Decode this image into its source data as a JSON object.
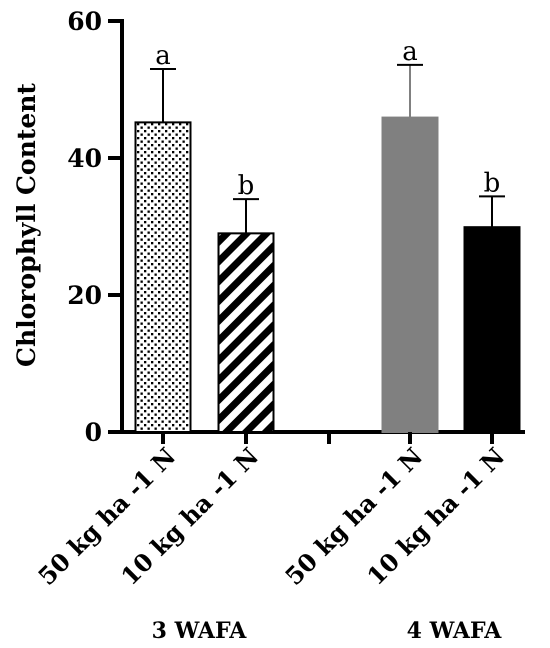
{
  "chart_data": {
    "type": "bar",
    "ylabel": "Chlorophyll Content",
    "ylim": [
      0,
      60
    ],
    "yticks": [
      0,
      20,
      40,
      60
    ],
    "groups": [
      {
        "label": "3 WAFA",
        "bars": [
          {
            "category": "50 kg ha -1 N",
            "value": 45.2,
            "error": 7.8,
            "letter": "a",
            "fill": "dotted"
          },
          {
            "category": "10 kg ha -1 N",
            "value": 29.0,
            "error": 5.0,
            "letter": "b",
            "fill": "diagonal-stripes"
          }
        ]
      },
      {
        "label": "4 WAFA",
        "bars": [
          {
            "category": "50 kg ha -1 N",
            "value": 45.9,
            "error": 7.7,
            "letter": "a",
            "fill": "#808080"
          },
          {
            "category": "10 kg ha -1 N",
            "value": 29.9,
            "error": 4.5,
            "letter": "b",
            "fill": "#000000"
          }
        ]
      }
    ],
    "grid": false,
    "legend": "none"
  }
}
